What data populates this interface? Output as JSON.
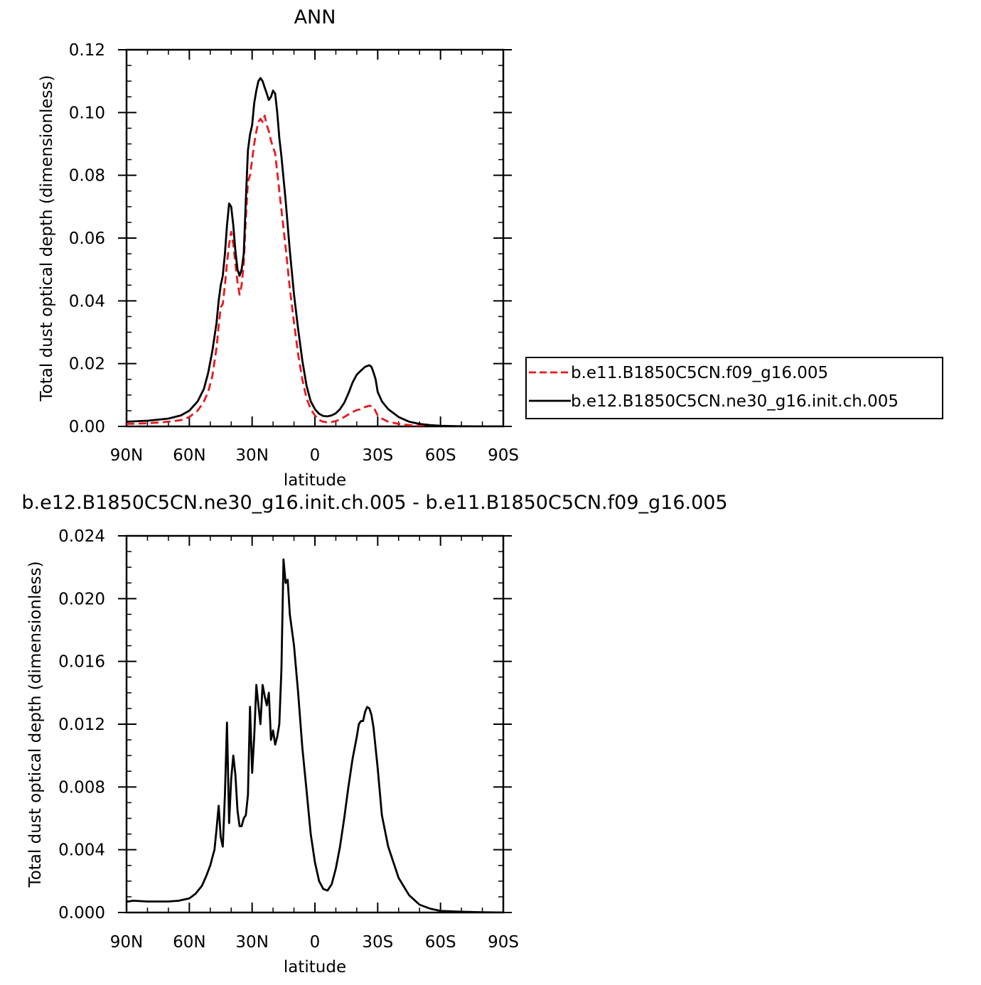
{
  "chart_data": [
    {
      "type": "line",
      "title": "ANN",
      "xlabel": "latitude",
      "ylabel": "Total dust optical depth (dimensionless)",
      "xlim": [
        90,
        -90
      ],
      "ylim": [
        0,
        0.12
      ],
      "x_tick_labels": [
        "90N",
        "60N",
        "30N",
        "0",
        "30S",
        "60S",
        "90S"
      ],
      "y_tick_labels": [
        "0.00",
        "0.02",
        "0.04",
        "0.06",
        "0.08",
        "0.10",
        "0.12"
      ],
      "grid": false,
      "legend_position": "right",
      "series": [
        {
          "name": "b.e11.B1850C5CN.f09_g16.005",
          "color": "#e8191e",
          "dash": "dashed",
          "x": [
            90,
            80,
            70,
            64,
            60,
            56,
            53,
            51,
            49,
            47,
            46,
            45,
            44,
            43,
            42,
            41,
            40,
            39,
            38,
            37,
            36,
            35,
            34,
            33,
            32,
            31,
            30,
            29,
            28,
            27,
            26,
            25,
            24,
            23,
            22,
            21,
            20,
            19,
            18,
            17,
            16,
            14,
            12,
            10,
            8,
            6,
            4,
            2,
            0,
            -2,
            -4,
            -6,
            -8,
            -10,
            -12,
            -14,
            -16,
            -18,
            -20,
            -22,
            -24,
            -26,
            -28,
            -29,
            -30,
            -32,
            -35,
            -40,
            -45,
            -50,
            -55,
            -60,
            -70,
            -80,
            -90
          ],
          "y": [
            0.0008,
            0.001,
            0.0015,
            0.002,
            0.003,
            0.005,
            0.008,
            0.011,
            0.016,
            0.025,
            0.032,
            0.038,
            0.039,
            0.045,
            0.052,
            0.058,
            0.062,
            0.058,
            0.052,
            0.046,
            0.042,
            0.045,
            0.052,
            0.066,
            0.078,
            0.08,
            0.085,
            0.09,
            0.094,
            0.097,
            0.098,
            0.097,
            0.099,
            0.096,
            0.094,
            0.091,
            0.089,
            0.087,
            0.081,
            0.075,
            0.069,
            0.057,
            0.044,
            0.033,
            0.023,
            0.015,
            0.009,
            0.0055,
            0.0035,
            0.002,
            0.0015,
            0.0013,
            0.0014,
            0.0017,
            0.0022,
            0.003,
            0.0038,
            0.0046,
            0.0052,
            0.0055,
            0.0062,
            0.0066,
            0.0062,
            0.0048,
            0.0035,
            0.0025,
            0.0015,
            0.0008,
            0.0004,
            0.0002,
            0.0001,
            5e-05,
            0.0,
            0.0,
            0.0
          ]
        },
        {
          "name": "b.e12.B1850C5CN.ne30_g16.init.ch.005",
          "color": "#000000",
          "dash": "solid",
          "x": [
            90,
            80,
            70,
            64,
            60,
            56,
            53,
            51,
            49,
            47,
            46,
            45,
            44,
            43,
            42,
            41,
            40,
            39,
            38,
            37,
            36,
            35,
            34,
            33,
            32,
            31,
            30,
            29,
            28,
            27,
            26,
            25,
            24,
            23,
            22,
            21,
            20,
            19,
            18,
            17,
            16,
            14,
            12,
            10,
            8,
            6,
            4,
            2,
            0,
            -2,
            -4,
            -6,
            -8,
            -10,
            -12,
            -14,
            -16,
            -18,
            -20,
            -22,
            -24,
            -26,
            -27,
            -28,
            -29,
            -30,
            -32,
            -35,
            -40,
            -45,
            -50,
            -55,
            -60,
            -70,
            -80,
            -90
          ],
          "y": [
            0.0015,
            0.0018,
            0.0025,
            0.0035,
            0.005,
            0.008,
            0.012,
            0.017,
            0.024,
            0.033,
            0.04,
            0.045,
            0.048,
            0.055,
            0.064,
            0.071,
            0.07,
            0.064,
            0.056,
            0.05,
            0.048,
            0.05,
            0.055,
            0.072,
            0.088,
            0.093,
            0.096,
            0.103,
            0.107,
            0.11,
            0.111,
            0.11,
            0.108,
            0.106,
            0.104,
            0.105,
            0.107,
            0.106,
            0.1,
            0.092,
            0.086,
            0.072,
            0.056,
            0.042,
            0.031,
            0.021,
            0.013,
            0.008,
            0.0055,
            0.004,
            0.0033,
            0.0032,
            0.0035,
            0.0042,
            0.0055,
            0.0075,
            0.0105,
            0.014,
            0.0165,
            0.0178,
            0.019,
            0.0195,
            0.019,
            0.0172,
            0.015,
            0.011,
            0.008,
            0.0055,
            0.003,
            0.0015,
            0.0008,
            0.0004,
            0.0002,
            5e-05,
            0.0,
            0.0
          ]
        }
      ]
    },
    {
      "type": "line",
      "title": "b.e12.B1850C5CN.ne30_g16.init.ch.005 - b.e11.B1850C5CN.f09_g16.005",
      "xlabel": "latitude",
      "ylabel": "Total dust optical depth (dimensionless)",
      "xlim": [
        90,
        -90
      ],
      "ylim": [
        0,
        0.024
      ],
      "x_tick_labels": [
        "90N",
        "60N",
        "30N",
        "0",
        "30S",
        "60S",
        "90S"
      ],
      "y_tick_labels": [
        "0.000",
        "0.004",
        "0.008",
        "0.012",
        "0.016",
        "0.020",
        "0.024"
      ],
      "grid": false,
      "series": [
        {
          "color": "#000000",
          "dash": "solid",
          "x": [
            90,
            89,
            87,
            80,
            70,
            65,
            60,
            57,
            54,
            52,
            50,
            49,
            48,
            47,
            46,
            45,
            44,
            43,
            42,
            41,
            40,
            39,
            38,
            37,
            36,
            35,
            34,
            33,
            32,
            31,
            30,
            29,
            28,
            27,
            26,
            25,
            24,
            23,
            22,
            21,
            20,
            19,
            18,
            17,
            16,
            15,
            14,
            13,
            12,
            10,
            8,
            6,
            4,
            2,
            0,
            -2,
            -4,
            -6,
            -8,
            -10,
            -12,
            -14,
            -16,
            -18,
            -20,
            -21,
            -22,
            -23,
            -24,
            -25,
            -26,
            -27,
            -28,
            -30,
            -32,
            -35,
            -40,
            -45,
            -50,
            -55,
            -60,
            -70,
            -80,
            -90
          ],
          "y": [
            0.0007,
            0.0007,
            0.00075,
            0.0007,
            0.0007,
            0.00075,
            0.0009,
            0.0012,
            0.0017,
            0.0023,
            0.003,
            0.0035,
            0.004,
            0.0053,
            0.0068,
            0.0048,
            0.0042,
            0.0075,
            0.0121,
            0.0057,
            0.0085,
            0.01,
            0.0088,
            0.0065,
            0.0055,
            0.0055,
            0.006,
            0.0062,
            0.0075,
            0.0131,
            0.0089,
            0.0112,
            0.0145,
            0.0132,
            0.012,
            0.0145,
            0.0138,
            0.0132,
            0.014,
            0.011,
            0.0116,
            0.0107,
            0.0112,
            0.012,
            0.0155,
            0.0225,
            0.021,
            0.0212,
            0.019,
            0.017,
            0.014,
            0.0105,
            0.0078,
            0.005,
            0.0032,
            0.002,
            0.0015,
            0.0014,
            0.0018,
            0.0028,
            0.0042,
            0.006,
            0.008,
            0.0098,
            0.0112,
            0.012,
            0.0122,
            0.0122,
            0.0128,
            0.0131,
            0.013,
            0.0126,
            0.0118,
            0.0092,
            0.0062,
            0.0042,
            0.0022,
            0.0011,
            0.0005,
            0.00025,
            0.0001,
            5e-05,
            2e-05,
            0.0
          ]
        }
      ]
    }
  ]
}
